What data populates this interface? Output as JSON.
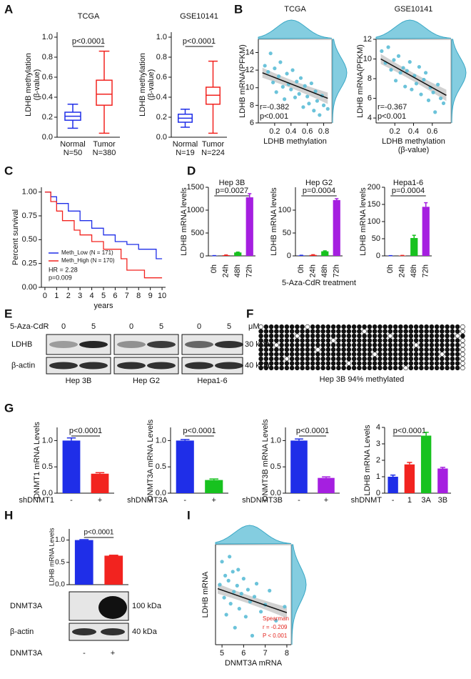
{
  "panel_labels": [
    "A",
    "B",
    "C",
    "D",
    "E",
    "F",
    "G",
    "H",
    "I"
  ],
  "chart_data": [
    {
      "type": "box",
      "title": "TCGA",
      "ylabel": [
        "LDHB methylation",
        "(β-value)"
      ],
      "categories": [
        "Normal",
        "Tumor"
      ],
      "n_labels": [
        "N=50",
        "N=380"
      ],
      "colors": [
        "#1f2ee8",
        "#f2231f"
      ],
      "stats": [
        [
          0.09,
          0.17,
          0.21,
          0.25,
          0.33
        ],
        [
          0.04,
          0.32,
          0.43,
          0.57,
          0.86
        ]
      ],
      "ylim": [
        0,
        1.05
      ],
      "yticks": [
        {
          "value": 0,
          "label": "0.0"
        },
        0.2,
        0.4,
        0.6,
        0.8,
        {
          "value": 1,
          "label": "1.0"
        }
      ],
      "annotations": [
        "p<0.0001"
      ]
    },
    {
      "type": "box",
      "title": "GSE10141",
      "ylabel": [
        "LDHB methylation",
        "(β-value)"
      ],
      "categories": [
        "Normal",
        "Tumor"
      ],
      "n_labels": [
        "N=19",
        "N=224"
      ],
      "colors": [
        "#1f2ee8",
        "#f2231f"
      ],
      "stats": [
        [
          0.1,
          0.15,
          0.19,
          0.23,
          0.28
        ],
        [
          0.04,
          0.33,
          0.42,
          0.5,
          0.76
        ]
      ],
      "ylim": [
        0,
        1.05
      ],
      "yticks": [
        {
          "value": 0,
          "label": "0.0"
        },
        0.2,
        0.4,
        0.6,
        0.8,
        {
          "value": 1,
          "label": "1.0"
        }
      ],
      "annotations": [
        "p<0.0001"
      ]
    },
    {
      "type": "scatter",
      "title": "TCGA",
      "ylabel": [
        "LDHB mRNA(PFKM)"
      ],
      "xlabel": [
        "LDHB methylation"
      ],
      "color": "#5bbcd6",
      "x": [
        0.08,
        0.12,
        0.15,
        0.18,
        0.2,
        0.22,
        0.25,
        0.27,
        0.3,
        0.32,
        0.35,
        0.37,
        0.4,
        0.42,
        0.45,
        0.47,
        0.5,
        0.52,
        0.55,
        0.57,
        0.6,
        0.62,
        0.65,
        0.68,
        0.7,
        0.72,
        0.75,
        0.78,
        0.8,
        0.85
      ],
      "y": [
        12.5,
        11.8,
        13.9,
        10.6,
        12.2,
        9.5,
        11.3,
        12.9,
        10.1,
        8.7,
        11.6,
        10.4,
        9.8,
        12.0,
        8.9,
        10.7,
        9.3,
        11.1,
        7.8,
        10.2,
        9.0,
        8.2,
        10.5,
        7.4,
        9.6,
        8.5,
        6.9,
        9.1,
        8.0,
        7.6
      ],
      "fit": [
        [
          0.05,
          11.7
        ],
        [
          0.85,
          8.8
        ]
      ],
      "xlim": [
        0,
        0.9
      ],
      "xticks": [
        0.2,
        0.4,
        0.6,
        0.8
      ],
      "ylim": [
        6,
        15.5
      ],
      "yticks": [
        6,
        8,
        10,
        12,
        14
      ],
      "annotations": [
        "r=-0.382",
        "p<0.001"
      ]
    },
    {
      "type": "scatter",
      "title": "GSE10141",
      "ylabel": [
        "LDHB mRNA(PFKM)"
      ],
      "xlabel": [
        "LDHB methylation",
        "(β-value)"
      ],
      "color": "#5bbcd6",
      "x": [
        0.06,
        0.1,
        0.13,
        0.16,
        0.19,
        0.21,
        0.24,
        0.26,
        0.29,
        0.31,
        0.33,
        0.36,
        0.38,
        0.41,
        0.43,
        0.46,
        0.48,
        0.51,
        0.53,
        0.56,
        0.58,
        0.61,
        0.63,
        0.66,
        0.69,
        0.72
      ],
      "y": [
        10.8,
        9.6,
        11.2,
        8.9,
        9.9,
        7.8,
        10.3,
        8.6,
        9.1,
        7.2,
        8.8,
        9.7,
        6.9,
        8.3,
        7.5,
        9.2,
        6.4,
        7.9,
        8.6,
        5.8,
        7.1,
        6.6,
        4.6,
        7.4,
        6.0,
        5.5
      ],
      "fit": [
        [
          0.05,
          10.0
        ],
        [
          0.75,
          6.3
        ]
      ],
      "xlim": [
        0,
        0.8
      ],
      "xticks": [
        0.2,
        0.4,
        0.6
      ],
      "ylim": [
        3.5,
        12
      ],
      "yticks": [
        4,
        6,
        8,
        10,
        12
      ],
      "annotations": [
        "r=-0.367",
        "p<0.001"
      ]
    },
    {
      "type": "line",
      "ylabel": [
        "Percent survival"
      ],
      "xlabel": [
        "years"
      ],
      "xlim": [
        -0.3,
        10.3
      ],
      "xticks": [
        0,
        1,
        2,
        3,
        4,
        5,
        6,
        7,
        8,
        9,
        10
      ],
      "ylim": [
        0,
        1.05
      ],
      "yticks": [
        {
          "value": 0,
          "label": "0.00"
        },
        {
          "value": 0.25,
          "label": "0.25"
        },
        {
          "value": 0.5,
          "label": "0.50"
        },
        {
          "value": 0.75,
          "label": "0.75"
        },
        {
          "value": 1,
          "label": "1.00"
        }
      ],
      "legend": "lower left",
      "series": [
        {
          "name": "Meth_Low (N = 171)",
          "color": "#1f2ee8",
          "x": [
            0,
            0.5,
            0.5,
            1,
            1,
            2,
            2,
            3,
            3,
            4,
            4,
            5,
            5,
            6,
            6,
            7,
            7,
            8,
            8,
            9.5,
            9.5,
            10
          ],
          "values": [
            1,
            1,
            0.95,
            0.95,
            0.88,
            0.88,
            0.8,
            0.8,
            0.7,
            0.7,
            0.62,
            0.62,
            0.55,
            0.55,
            0.48,
            0.48,
            0.45,
            0.45,
            0.4,
            0.4,
            0.3,
            0.3
          ]
        },
        {
          "name": "Meth_High (N = 170)",
          "color": "#f2231f",
          "x": [
            0,
            0.5,
            0.5,
            1,
            1,
            1.5,
            1.5,
            2.5,
            2.5,
            3,
            3,
            4,
            4,
            5,
            5,
            6.5,
            6.5,
            7,
            7,
            8.5,
            8.5,
            10
          ],
          "values": [
            1,
            1,
            0.9,
            0.9,
            0.8,
            0.8,
            0.7,
            0.7,
            0.6,
            0.6,
            0.55,
            0.55,
            0.48,
            0.48,
            0.4,
            0.4,
            0.3,
            0.3,
            0.18,
            0.18,
            0.1,
            0.1
          ]
        }
      ],
      "annotations": [
        "HR = 2.28",
        "p=0.009"
      ]
    },
    {
      "type": "bar",
      "title": "Hep 3B",
      "ylabel": [
        "LDHB mRNA levels"
      ],
      "categories": [
        "0h",
        "24h",
        "48h",
        "72h"
      ],
      "values": [
        5,
        15,
        75,
        1280
      ],
      "errors": [
        1,
        4,
        8,
        80
      ],
      "colors": [
        "#1f2ee8",
        "#f2231f",
        "#17c21f",
        "#a51fe0"
      ],
      "ylim": [
        0,
        1500
      ],
      "yticks": [
        0,
        500,
        1000,
        1500
      ],
      "annotations": [
        "p=0.0027"
      ]
    },
    {
      "type": "bar",
      "title": "Hep G2",
      "ylabel": [
        "LDHB mRNA levels"
      ],
      "xlabel": [
        "5-Aza-CdR treatment"
      ],
      "categories": [
        "0h",
        "24h",
        "48h",
        "72h"
      ],
      "values": [
        1,
        2,
        10,
        122
      ],
      "errors": [
        0.3,
        0.5,
        1,
        3
      ],
      "colors": [
        "#1f2ee8",
        "#f2231f",
        "#17c21f",
        "#a51fe0"
      ],
      "ylim": [
        0,
        150
      ],
      "yticks": [
        0,
        50,
        100
      ],
      "annotations": [
        "p=0.0004"
      ]
    },
    {
      "type": "bar",
      "title": "Hepa1-6",
      "ylabel": [
        "LDHB mRNA levels"
      ],
      "categories": [
        "0h",
        "24h",
        "48h",
        "72h"
      ],
      "values": [
        0.5,
        1,
        52,
        143
      ],
      "errors": [
        0.2,
        0.3,
        8,
        12
      ],
      "colors": [
        "#1f2ee8",
        "#f2231f",
        "#17c21f",
        "#a51fe0"
      ],
      "ylim": [
        0,
        200
      ],
      "yticks": [
        0,
        50,
        100,
        150,
        200
      ],
      "annotations": [
        "p=0.0004"
      ]
    },
    {
      "type": "bar",
      "ylabel": [
        "DNMT1 mRNA Levels"
      ],
      "xlabel": [
        "shDNMT1"
      ],
      "categories": [
        "-",
        "+"
      ],
      "values": [
        1.0,
        0.37
      ],
      "errors": [
        0.05,
        0.02
      ],
      "colors": [
        "#1f2ee8",
        "#f2231f"
      ],
      "ylim": [
        0,
        1.25
      ],
      "yticks": [
        {
          "value": 0,
          "label": "0.0"
        },
        0.5,
        {
          "value": 1,
          "label": "1.0"
        }
      ],
      "annotations": [
        "p<0.0001"
      ]
    },
    {
      "type": "bar",
      "ylabel": [
        "DNMT3A mRNA Levels"
      ],
      "xlabel": [
        "shDNMT3A"
      ],
      "categories": [
        "-",
        "+"
      ],
      "values": [
        1.0,
        0.25
      ],
      "errors": [
        0.02,
        0.02
      ],
      "colors": [
        "#1f2ee8",
        "#17c21f"
      ],
      "ylim": [
        0,
        1.25
      ],
      "yticks": [
        {
          "value": 0,
          "label": "0.0"
        },
        0.5,
        {
          "value": 1,
          "label": "1.0"
        }
      ],
      "annotations": [
        "p<0.0001"
      ]
    },
    {
      "type": "bar",
      "ylabel": [
        "DNMT3B mRNA Levels"
      ],
      "xlabel": [
        "shDNMT3B"
      ],
      "categories": [
        "-",
        "+"
      ],
      "values": [
        1.0,
        0.29
      ],
      "errors": [
        0.03,
        0.02
      ],
      "colors": [
        "#1f2ee8",
        "#a51fe0"
      ],
      "ylim": [
        0,
        1.25
      ],
      "yticks": [
        {
          "value": 0,
          "label": "0.0"
        },
        0.5,
        {
          "value": 1,
          "label": "1.0"
        }
      ],
      "annotations": [
        "p<0.0001"
      ]
    },
    {
      "type": "bar",
      "ylabel": [
        "LDHB mRNA Levels"
      ],
      "xlabel": [
        "shDNMT"
      ],
      "categories": [
        "-",
        "1",
        "3A",
        "3B"
      ],
      "values": [
        1.0,
        1.75,
        3.5,
        1.5
      ],
      "errors": [
        0.1,
        0.12,
        0.2,
        0.07
      ],
      "colors": [
        "#1f2ee8",
        "#f2231f",
        "#17c21f",
        "#a51fe0"
      ],
      "ylim": [
        0,
        4
      ],
      "yticks": [
        0,
        1,
        2,
        3,
        4
      ],
      "annotations": [
        "p<0.0001"
      ]
    },
    {
      "type": "bar",
      "ylabel": [
        "LDHB mRNA Levels"
      ],
      "values": [
        1.0,
        0.65
      ],
      "errors": [
        0.01,
        0.01
      ],
      "colors": [
        "#1f2ee8",
        "#f2231f"
      ],
      "ylim": [
        0,
        1.25
      ],
      "yticks": [
        {
          "value": 0,
          "label": "0.0"
        },
        0.5,
        {
          "value": 1,
          "label": "1.0"
        }
      ],
      "annotations": [
        "p<0.0001"
      ]
    },
    {
      "type": "scatter",
      "ylabel": [
        "LDHB mRNA"
      ],
      "xlabel": [
        "DNMT3A mRNA"
      ],
      "color": "#5bbcd6",
      "x": [
        4.9,
        5.0,
        5.1,
        5.15,
        5.2,
        5.3,
        5.35,
        5.4,
        5.5,
        5.55,
        5.6,
        5.7,
        5.75,
        5.8,
        5.9,
        6.0,
        6.1,
        6.2,
        6.3,
        6.4,
        6.5,
        6.6,
        6.8,
        7.0,
        7.2,
        7.5,
        7.9
      ],
      "y": [
        9.5,
        11.8,
        8.2,
        10.4,
        6.5,
        9.9,
        12.3,
        7.6,
        10.8,
        8.8,
        5.2,
        9.4,
        11.0,
        7.1,
        8.6,
        10.1,
        6.3,
        9.0,
        7.8,
        4.4,
        8.3,
        9.6,
        6.8,
        7.5,
        8.9,
        5.9,
        7.3
      ],
      "fit": [
        [
          4.8,
          9.1
        ],
        [
          8.0,
          6.7
        ]
      ],
      "xlim": [
        4.7,
        8.2
      ],
      "xticks": [
        5,
        6,
        7,
        8
      ],
      "ylim": [
        3.5,
        13.5
      ],
      "annotations": [
        "Spearman",
        "r = -0.209",
        "P < 0.001"
      ]
    }
  ],
  "blot_E": {
    "treatment": "5-Aza-CdR",
    "doses": [
      "0",
      "5",
      "0",
      "5",
      "0",
      "5"
    ],
    "unit": "μM",
    "rows": [
      "LDHB",
      "β-actin"
    ],
    "markers": [
      "30 kDa",
      "40 kDa"
    ],
    "cell_lines": [
      "Hep 3B",
      "Hep G2",
      "Hepa1-6"
    ]
  },
  "methylation": {
    "rows": 10,
    "cols": 40,
    "unmethylated": [
      [
        0,
        0
      ],
      [
        0,
        9
      ],
      [
        0,
        39
      ],
      [
        1,
        20
      ],
      [
        1,
        39
      ],
      [
        2,
        7
      ],
      [
        2,
        25
      ],
      [
        2,
        38
      ],
      [
        3,
        14
      ],
      [
        3,
        39
      ],
      [
        4,
        3
      ],
      [
        4,
        30
      ],
      [
        4,
        39
      ],
      [
        5,
        11
      ],
      [
        5,
        39
      ],
      [
        6,
        22
      ],
      [
        6,
        35
      ],
      [
        6,
        39
      ],
      [
        7,
        5
      ],
      [
        7,
        39
      ],
      [
        8,
        17
      ],
      [
        8,
        39
      ],
      [
        9,
        28
      ],
      [
        9,
        39
      ]
    ],
    "caption": "Hep 3B 94% methylated"
  },
  "blot_H": {
    "rows": [
      "DNMT3A",
      "β-actin"
    ],
    "markers": [
      "100 kDa",
      "40 kDa"
    ],
    "label": "DNMT3A",
    "lanes": [
      "-",
      "+"
    ]
  }
}
